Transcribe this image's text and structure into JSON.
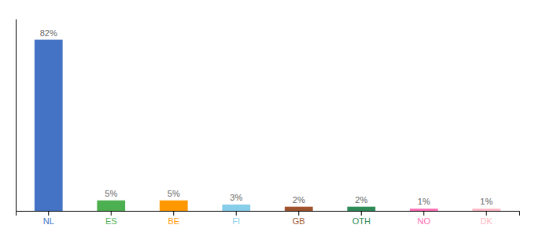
{
  "chart_data": {
    "type": "bar",
    "categories": [
      "NL",
      "ES",
      "BE",
      "FI",
      "GB",
      "OTH",
      "NO",
      "DK"
    ],
    "values": [
      82,
      5,
      5,
      3,
      2,
      2,
      1,
      1
    ],
    "value_labels": [
      "82%",
      "5%",
      "5%",
      "3%",
      "2%",
      "2%",
      "1%",
      "1%"
    ],
    "colors": [
      "#4472C4",
      "#4CAF50",
      "#FF9800",
      "#87CEEB",
      "#A0522D",
      "#2E8B57",
      "#FF69B4",
      "#FFB6C1"
    ],
    "ylim": [
      0,
      92
    ],
    "data_labels": true,
    "tick_labels": "x",
    "grid": false
  }
}
